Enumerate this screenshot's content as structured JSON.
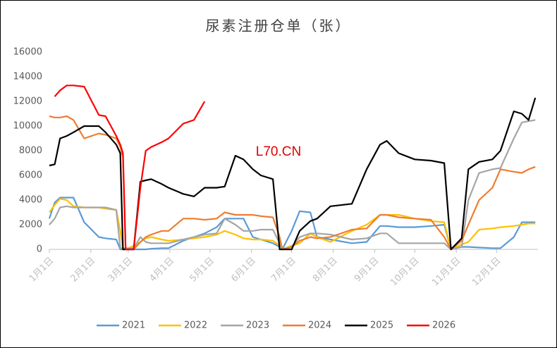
{
  "chart_data": {
    "type": "line",
    "title": "尿素注册仓单（张）",
    "annotation": "L70.CN",
    "x": [
      0,
      4,
      8,
      13,
      18,
      26,
      37,
      42,
      50,
      53,
      55,
      57,
      63,
      68,
      72,
      76,
      84,
      89,
      100,
      108,
      116,
      125,
      131,
      139,
      145,
      152,
      158,
      167,
      172,
      174,
      181,
      187,
      195,
      200,
      210,
      226,
      237,
      247,
      252,
      261,
      273,
      285,
      295,
      300,
      308,
      313,
      321,
      331,
      337,
      347,
      353,
      358,
      363
    ],
    "xlim": [
      0,
      365
    ],
    "xticks": [
      {
        "value": 0,
        "label": "1月1日"
      },
      {
        "value": 31,
        "label": "2月1日"
      },
      {
        "value": 59,
        "label": "3月1日"
      },
      {
        "value": 90,
        "label": "4月1日"
      },
      {
        "value": 120,
        "label": "5月1日"
      },
      {
        "value": 151,
        "label": "6月1日"
      },
      {
        "value": 181,
        "label": "7月1日"
      },
      {
        "value": 212,
        "label": "8月1日"
      },
      {
        "value": 243,
        "label": "9月1日"
      },
      {
        "value": 273,
        "label": "10月1日"
      },
      {
        "value": 304,
        "label": "11月1日"
      },
      {
        "value": 334,
        "label": "12月1日"
      }
    ],
    "ylim": [
      0,
      16000
    ],
    "yticks": [
      0,
      2000,
      4000,
      6000,
      8000,
      10000,
      12000,
      14000,
      16000
    ],
    "legend": "bottom",
    "series": [
      {
        "name": "2021",
        "color": "#5b9bd5",
        "values": [
          2500,
          3800,
          4200,
          4200,
          4200,
          2200,
          1000,
          900,
          800,
          0,
          0,
          0,
          0,
          0,
          0,
          50,
          100,
          100,
          700,
          1000,
          1300,
          1800,
          2500,
          2500,
          2500,
          1000,
          800,
          500,
          200,
          0,
          1500,
          3100,
          3000,
          1000,
          800,
          500,
          600,
          1900,
          1900,
          1800,
          1800,
          1900,
          2000,
          0,
          200,
          200,
          150,
          100,
          100,
          1000,
          2200,
          2200,
          2200
        ]
      },
      {
        "name": "2022",
        "color": "#ffc000",
        "values": [
          3000,
          3600,
          4100,
          4000,
          3500,
          3400,
          3400,
          3300,
          3200,
          1500,
          0,
          0,
          300,
          600,
          900,
          1000,
          800,
          700,
          800,
          900,
          1000,
          1200,
          1500,
          1200,
          900,
          800,
          800,
          700,
          300,
          0,
          300,
          500,
          1300,
          1000,
          600,
          1500,
          2000,
          2800,
          2800,
          2800,
          2500,
          2300,
          2200,
          0,
          400,
          600,
          1600,
          1700,
          1800,
          1900,
          2000,
          2100,
          2100
        ]
      },
      {
        "name": "2023",
        "color": "#a5a5a5",
        "values": [
          2000,
          2500,
          3400,
          3500,
          3400,
          3400,
          3400,
          3400,
          3200,
          100,
          100,
          100,
          100,
          1000,
          600,
          500,
          500,
          500,
          800,
          1000,
          1200,
          1300,
          2500,
          2000,
          1500,
          1500,
          1600,
          1600,
          500,
          0,
          200,
          1000,
          1300,
          1300,
          1200,
          800,
          900,
          1300,
          1300,
          500,
          500,
          500,
          500,
          0,
          200,
          4000,
          6200,
          6500,
          6600,
          9000,
          10300,
          10400,
          10500
        ]
      },
      {
        "name": "2024",
        "color": "#ed7d31",
        "values": [
          10800,
          10700,
          10700,
          10800,
          10500,
          9000,
          9400,
          9300,
          9000,
          8300,
          7500,
          0,
          0,
          600,
          1000,
          1200,
          1500,
          1500,
          2500,
          2500,
          2400,
          2500,
          3000,
          2800,
          2800,
          2800,
          2700,
          2600,
          1000,
          0,
          200,
          700,
          1000,
          900,
          1000,
          1600,
          1700,
          2800,
          2800,
          2600,
          2500,
          2400,
          1000,
          0,
          700,
          2000,
          4000,
          5000,
          6500,
          6300,
          6200,
          6500,
          6700
        ]
      },
      {
        "name": "2025",
        "color": "#000000",
        "values": [
          6800,
          6900,
          9000,
          9200,
          9500,
          10000,
          10000,
          9500,
          8500,
          7800,
          0,
          0,
          0,
          5500,
          5600,
          5700,
          5300,
          5000,
          4500,
          4300,
          5000,
          5000,
          5100,
          7600,
          7300,
          6500,
          6000,
          5700,
          0,
          0,
          0,
          1500,
          2300,
          2500,
          3500,
          3700,
          6500,
          8500,
          8800,
          7800,
          7300,
          7200,
          7000,
          0,
          900,
          6500,
          7100,
          7300,
          8000,
          11200,
          11000,
          10500,
          12300
        ]
      },
      {
        "name": "2026",
        "color": "#ff0000",
        "values": [
          null,
          12400,
          12900,
          13300,
          13300,
          13200,
          10900,
          10800,
          9200,
          8500,
          7800,
          0,
          0,
          5000,
          8000,
          8300,
          8700,
          9000,
          10200,
          10500,
          12000,
          null,
          null,
          null,
          null,
          null,
          null,
          null,
          null,
          null,
          null,
          null,
          null,
          null,
          null,
          null,
          null,
          null,
          null,
          null,
          null,
          null,
          null,
          null,
          null,
          null,
          null,
          null,
          null,
          null,
          null,
          null,
          null
        ]
      }
    ]
  }
}
